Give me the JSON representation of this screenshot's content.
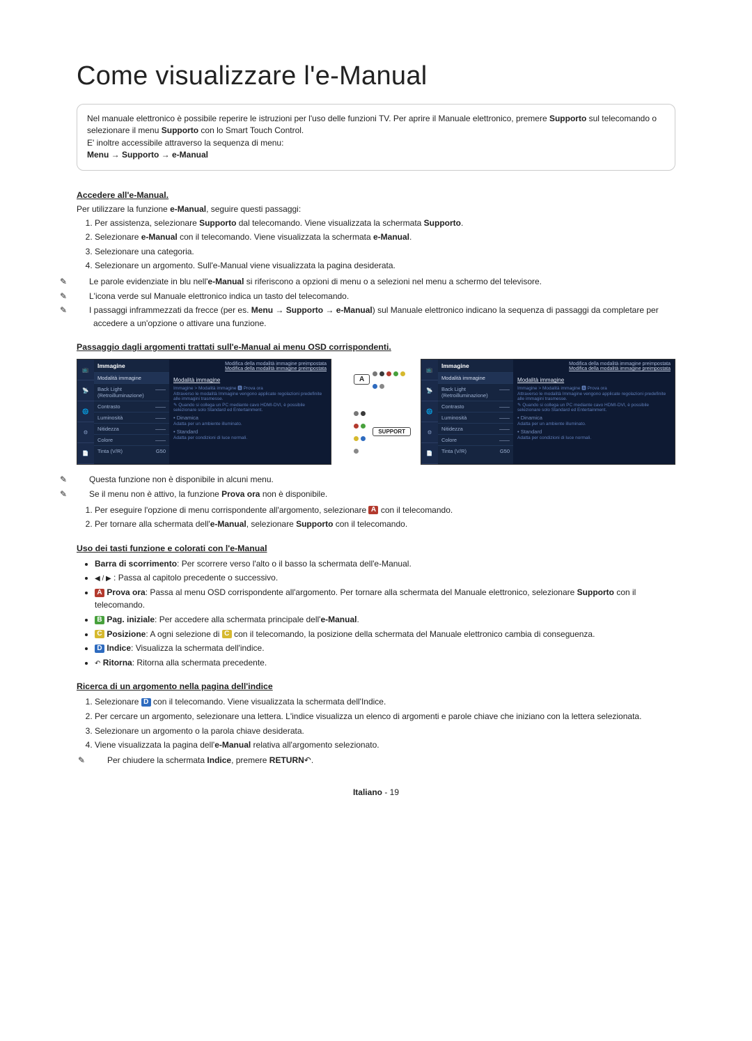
{
  "title": "Come visualizzare l'e-Manual",
  "introBox": {
    "line1_pre": "Nel manuale elettronico è possibile reperire le istruzioni per l'uso delle funzioni TV. Per aprire il Manuale elettronico, premere ",
    "line1_b1": "Supporto",
    "line1_mid": " sul telecomando o selezionare il menu ",
    "line1_b2": "Supporto",
    "line1_post": " con lo Smart Touch Control.",
    "line2": "E' inoltre accessibile attraverso la sequenza di menu:",
    "line3_bold": "Menu → Supporto → e-Manual"
  },
  "access": {
    "heading": "Accedere all'e-Manual.",
    "intro_pre": "Per utilizzare la funzione ",
    "intro_b": "e-Manual",
    "intro_post": ", seguire questi passaggi:",
    "steps": [
      {
        "pre": "Per assistenza, selezionare ",
        "b1": "Supporto",
        "mid": " dal telecomando. Viene visualizzata la schermata ",
        "b2": "Supporto",
        "post": "."
      },
      {
        "pre": "Selezionare ",
        "b1": "e-Manual",
        "mid": " con il telecomando. Viene visualizzata la schermata ",
        "b2": "e-Manual",
        "post": "."
      },
      {
        "pre": "Selezionare una categoria.",
        "b1": "",
        "mid": "",
        "b2": "",
        "post": ""
      },
      {
        "pre": "Selezionare un argomento. Sull'e-Manual viene visualizzata la pagina desiderata.",
        "b1": "",
        "mid": "",
        "b2": "",
        "post": ""
      }
    ],
    "notes": [
      {
        "pre": "Le parole evidenziate in blu nell'",
        "b": "e-Manual",
        "post": " si riferiscono a opzioni di menu o a selezioni nel menu a schermo del televisore."
      },
      {
        "pre": "L'icona verde sul Manuale elettronico indica un tasto del telecomando.",
        "b": "",
        "post": ""
      },
      {
        "pre": "I passaggi inframmezzati da frecce (per es. ",
        "b": "Menu → Supporto → e-Manual",
        "post": ") sul Manuale elettronico indicano la sequenza di passaggi da completare per accedere a un'opzione o attivare una funzione."
      }
    ]
  },
  "passage": {
    "heading": "Passaggio dagli argomenti trattati sull'e-Manual ai menu OSD corrispondenti."
  },
  "tvScreen": {
    "breadcrumb_top": "Modifica della modalità immagine preimpostata",
    "breadcrumb_title": "Modifica della modalità immagine preimpostata",
    "menu_head": "Immagine",
    "menu_items": [
      {
        "label": "Modalità immagine",
        "val": ""
      },
      {
        "label": "Back Light (Retroilluminazione)",
        "val": "——"
      },
      {
        "label": "Contrasto",
        "val": "——"
      },
      {
        "label": "Luminosità",
        "val": "——"
      },
      {
        "label": "Nitidezza",
        "val": "——"
      },
      {
        "label": "Colore",
        "val": "——"
      },
      {
        "label": "Tinta (V/R)",
        "val": "G50"
      }
    ],
    "section_title": "Modalità immagine",
    "section_line": "Immagine > Modalità immagine 🅰 Prova ora",
    "section_desc": "Attraverso le modalità Immagine vengono applicate regolazioni predefinite alle immagini trasmesse.",
    "section_note": "Quando si collega un PC mediante cavo HDMI-DVI, è possibile selezionare solo Standard ed Entertainment.",
    "bullet1": "• Dinamica",
    "bullet1_desc": "Adatta per un ambiente illuminato.",
    "bullet2": "• Standard",
    "bullet2_desc": "Adatta per condizioni di luce normali."
  },
  "keys": {
    "A_key": "A",
    "support_key": "SUPPORT",
    "dot_colors": [
      "#777777",
      "#3a3a3a",
      "#b33a2e",
      "#48a13d",
      "#d6b92e",
      "#2e6bbf",
      "#888888"
    ]
  },
  "afterScreens": {
    "notes": [
      "Questa funzione non è disponibile in alcuni menu.",
      "Se il menu non è attivo, la funzione Prova ora non è disponibile."
    ],
    "note2_boldPhrase": "Prova ora",
    "steps": [
      {
        "pre": "Per eseguire l'opzione di menu corrispondente all'argomento, selezionare ",
        "badge": "A",
        "badgeColor": "#b33a2e",
        "post": " con il telecomando."
      },
      {
        "pre": "Per tornare alla schermata dell'",
        "b": "e-Manual",
        "mid": ", selezionare ",
        "b2": "Supporto",
        "post": " con il telecomando."
      }
    ]
  },
  "colored": {
    "heading": "Uso dei tasti funzione e colorati con l'e-Manual",
    "items": [
      {
        "lead_b": "Barra di scorrimento",
        "text": ": Per scorrere verso l'alto o il basso la schermata dell'e-Manual."
      },
      {
        "lead_b": "",
        "prefix_glyph": "◀ / ▶",
        "text": ": Passa al capitolo precedente o successivo."
      },
      {
        "badge": "A",
        "badgeColor": "#b33a2e",
        "lead_b": "Prova ora",
        "text": ": Passa al menu OSD corrispondente all'argomento. Per tornare alla schermata del Manuale elettronico, selezionare ",
        "tail_b": "Supporto",
        "tail": " con il telecomando."
      },
      {
        "badge": "B",
        "badgeColor": "#48a13d",
        "lead_b": "Pag. iniziale",
        "text": ": Per accedere alla schermata principale dell'",
        "tail_b": "e-Manual",
        "tail": "."
      },
      {
        "badge": "C",
        "badgeColor": "#d6b92e",
        "lead_b": "Posizione",
        "text": ": A ogni selezione di ",
        "mid_badge": "C",
        "mid_badgeColor": "#d6b92e",
        "text2": " con il telecomando, la posizione della schermata del Manuale elettronico cambia di conseguenza."
      },
      {
        "badge": "D",
        "badgeColor": "#2e6bbf",
        "lead_b": "Indice",
        "text": ": Visualizza la schermata dell'indice."
      },
      {
        "prefix_glyph": "↶",
        "lead_b": "Ritorna",
        "text": ": Ritorna alla schermata precedente."
      }
    ]
  },
  "search": {
    "heading": "Ricerca di un argomento nella pagina dell'indice",
    "steps": [
      {
        "pre": "Selezionare ",
        "badge": "D",
        "badgeColor": "#2e6bbf",
        "post": " con il telecomando. Viene visualizzata la schermata dell'Indice."
      },
      {
        "pre": "Per cercare un argomento, selezionare una lettera. L'indice visualizza un elenco di argomenti e parole chiave che iniziano con la lettera selezionata."
      },
      {
        "pre": "Selezionare un argomento o la parola chiave desiderata."
      },
      {
        "pre": "Viene visualizzata la pagina dell'",
        "b": "e-Manual",
        "post": " relativa all'argomento selezionato."
      }
    ],
    "subnote_pre": "Per chiudere la schermata ",
    "subnote_b": "Indice",
    "subnote_mid": ", premere ",
    "subnote_b2": "RETURN",
    "subnote_glyph": "↶",
    "subnote_post": "."
  },
  "footer": {
    "lang": "Italiano",
    "sep": " - ",
    "page": "19"
  },
  "colors": {
    "noteIcon": "✎",
    "A": "#b33a2e",
    "B": "#48a13d",
    "C": "#d6b92e",
    "D": "#2e6bbf"
  }
}
